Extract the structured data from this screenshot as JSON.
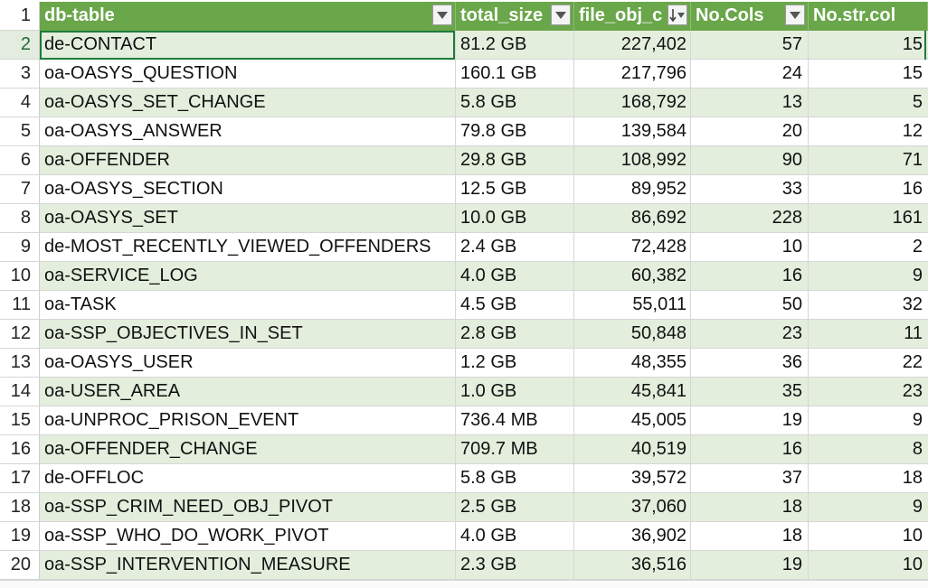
{
  "header": {
    "row_number": "1",
    "columns": [
      {
        "label": "db-table"
      },
      {
        "label": "total_size"
      },
      {
        "label": "file_obj_c"
      },
      {
        "label": "No.Cols"
      },
      {
        "label": "No.str.col"
      }
    ]
  },
  "rows": [
    {
      "n": "2",
      "name": "de-CONTACT",
      "size": "81.2 GB",
      "files": "227,402",
      "cols": "57",
      "strcols": "15"
    },
    {
      "n": "3",
      "name": "oa-OASYS_QUESTION",
      "size": "160.1 GB",
      "files": "217,796",
      "cols": "24",
      "strcols": "15"
    },
    {
      "n": "4",
      "name": "oa-OASYS_SET_CHANGE",
      "size": "5.8 GB",
      "files": "168,792",
      "cols": "13",
      "strcols": "5"
    },
    {
      "n": "5",
      "name": "oa-OASYS_ANSWER",
      "size": "79.8 GB",
      "files": "139,584",
      "cols": "20",
      "strcols": "12"
    },
    {
      "n": "6",
      "name": "oa-OFFENDER",
      "size": "29.8 GB",
      "files": "108,992",
      "cols": "90",
      "strcols": "71"
    },
    {
      "n": "7",
      "name": "oa-OASYS_SECTION",
      "size": "12.5 GB",
      "files": "89,952",
      "cols": "33",
      "strcols": "16"
    },
    {
      "n": "8",
      "name": "oa-OASYS_SET",
      "size": "10.0 GB",
      "files": "86,692",
      "cols": "228",
      "strcols": "161"
    },
    {
      "n": "9",
      "name": "de-MOST_RECENTLY_VIEWED_OFFENDERS",
      "size": "2.4 GB",
      "files": "72,428",
      "cols": "10",
      "strcols": "2"
    },
    {
      "n": "10",
      "name": "oa-SERVICE_LOG",
      "size": "4.0 GB",
      "files": "60,382",
      "cols": "16",
      "strcols": "9"
    },
    {
      "n": "11",
      "name": "oa-TASK",
      "size": "4.5 GB",
      "files": "55,011",
      "cols": "50",
      "strcols": "32"
    },
    {
      "n": "12",
      "name": "oa-SSP_OBJECTIVES_IN_SET",
      "size": "2.8 GB",
      "files": "50,848",
      "cols": "23",
      "strcols": "11"
    },
    {
      "n": "13",
      "name": "oa-OASYS_USER",
      "size": "1.2 GB",
      "files": "48,355",
      "cols": "36",
      "strcols": "22"
    },
    {
      "n": "14",
      "name": "oa-USER_AREA",
      "size": "1.0 GB",
      "files": "45,841",
      "cols": "35",
      "strcols": "23"
    },
    {
      "n": "15",
      "name": "oa-UNPROC_PRISON_EVENT",
      "size": "736.4 MB",
      "files": "45,005",
      "cols": "19",
      "strcols": "9"
    },
    {
      "n": "16",
      "name": "oa-OFFENDER_CHANGE",
      "size": "709.7 MB",
      "files": "40,519",
      "cols": "16",
      "strcols": "8"
    },
    {
      "n": "17",
      "name": "de-OFFLOC",
      "size": "5.8 GB",
      "files": "39,572",
      "cols": "37",
      "strcols": "18"
    },
    {
      "n": "18",
      "name": "oa-SSP_CRIM_NEED_OBJ_PIVOT",
      "size": "2.5 GB",
      "files": "37,060",
      "cols": "18",
      "strcols": "9"
    },
    {
      "n": "19",
      "name": "oa-SSP_WHO_DO_WORK_PIVOT",
      "size": "4.0 GB",
      "files": "36,902",
      "cols": "18",
      "strcols": "10"
    },
    {
      "n": "20",
      "name": "oa-SSP_INTERVENTION_MEASURE",
      "size": "2.3 GB",
      "files": "36,516",
      "cols": "19",
      "strcols": "10"
    }
  ],
  "icons": {
    "filter": "filter-dropdown-icon",
    "sorted_filter": "sort-descending-filter-icon"
  },
  "colors": {
    "header_bg": "#6aa64a",
    "band": "#e3eedd",
    "selection": "#1f7a3a"
  }
}
